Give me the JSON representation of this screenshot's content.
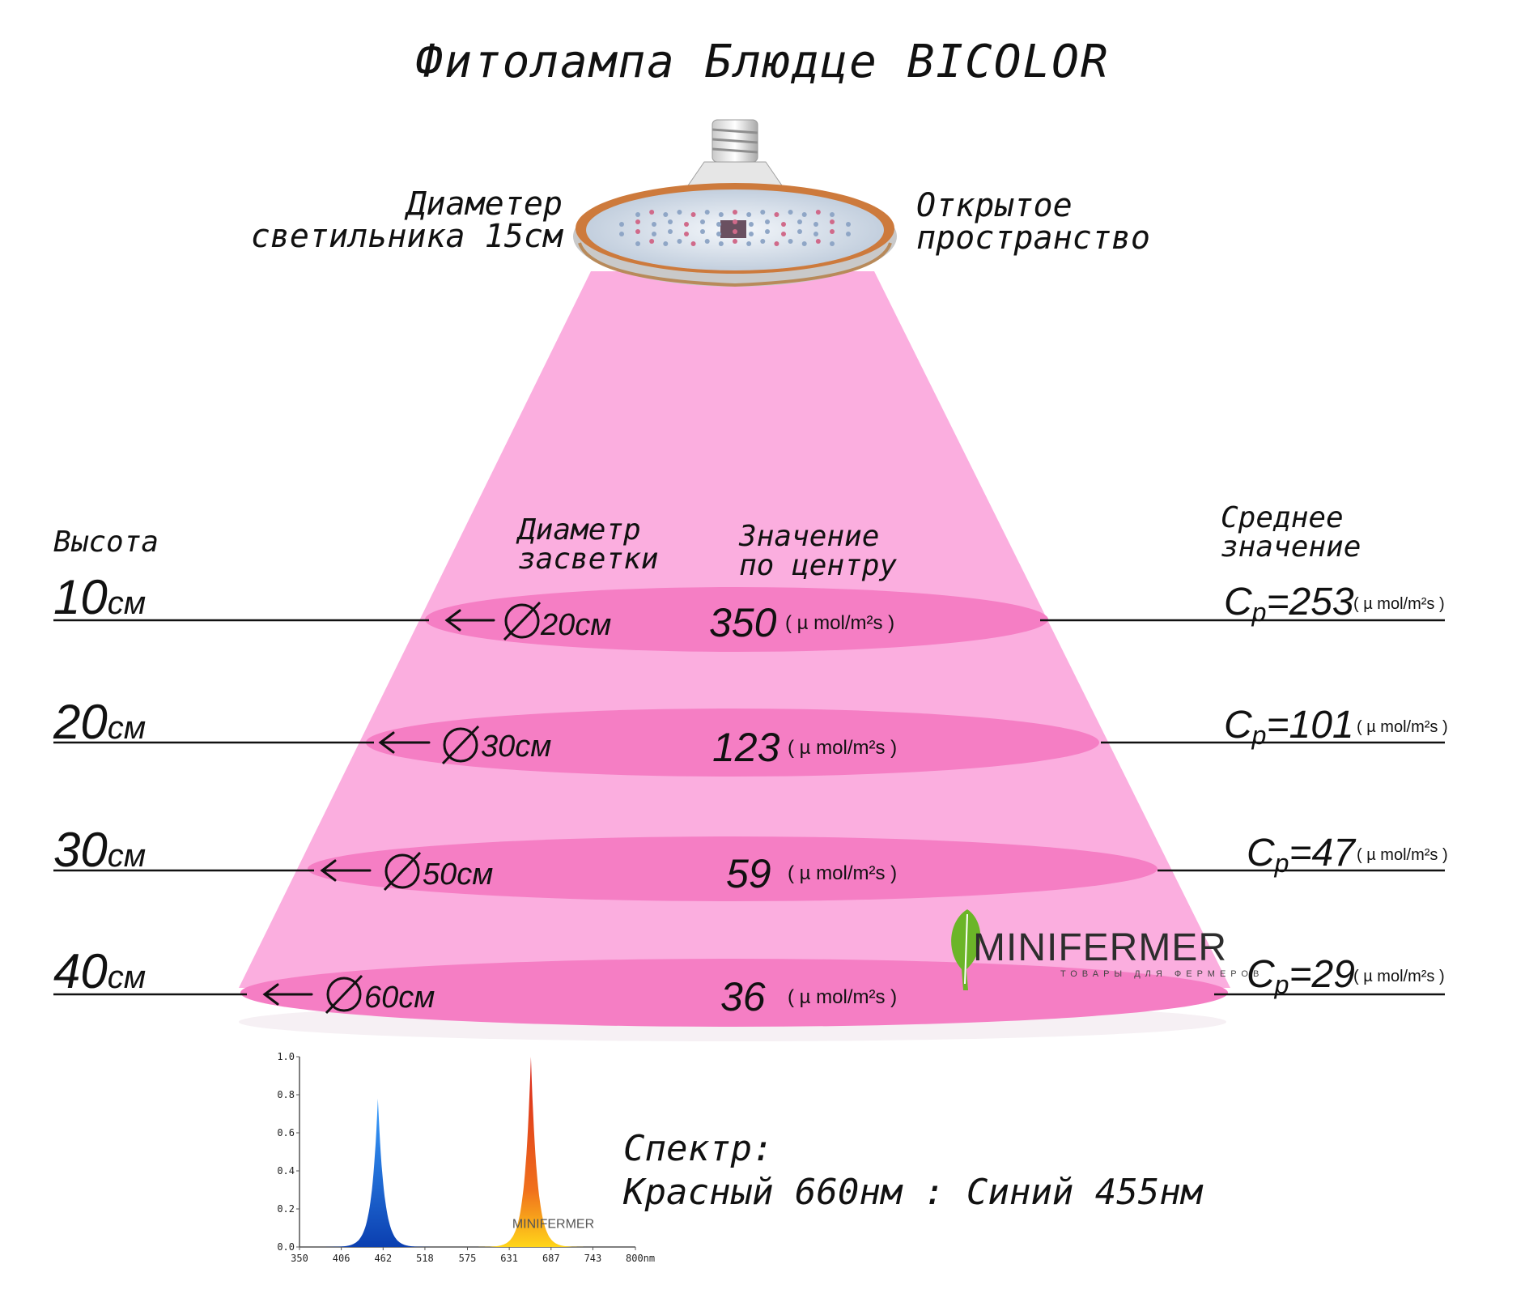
{
  "title": "Фитолампа Блюдце BICOLOR",
  "lamp": {
    "left_label": [
      "Диаметер",
      "светильника 15см"
    ],
    "right_label": [
      "Открытое",
      "пространство"
    ]
  },
  "headers": {
    "height": "Высота",
    "diameter": [
      "Диаметр",
      "засветки"
    ],
    "center": [
      "Значение",
      "по центру"
    ],
    "average": [
      "Среднее",
      "значение"
    ]
  },
  "unit": "( µ mol/m²s )",
  "rows": [
    {
      "height_num": "10",
      "height_unit": "см",
      "diameter": "20см",
      "center": "350",
      "avg_prefix": "C",
      "avg_sub": "p",
      "avg_value": "=253"
    },
    {
      "height_num": "20",
      "height_unit": "см",
      "diameter": "30см",
      "center": "123",
      "avg_prefix": "C",
      "avg_sub": "p",
      "avg_value": "=101"
    },
    {
      "height_num": "30",
      "height_unit": "см",
      "diameter": "50см",
      "center": "59",
      "avg_prefix": "C",
      "avg_sub": "p",
      "avg_value": "=47"
    },
    {
      "height_num": "40",
      "height_unit": "см",
      "diameter": "60см",
      "center": "36",
      "avg_prefix": "C",
      "avg_sub": "p",
      "avg_value": "=29"
    }
  ],
  "logo": {
    "brand": "MINIFERMER",
    "tagline": "ТОВАРЫ ДЛЯ ФЕРМЕРОВ"
  },
  "spectrum": {
    "caption": [
      "Спектр:",
      "Красный 660нм : Синий 455нм"
    ],
    "unit": "nm",
    "watermark": "MINIFERMER"
  },
  "colors": {
    "cone": "#fbaedf",
    "ellipse": "#f57ec4",
    "blue_peak": "#1f7fe0",
    "red_peak": "#e8361a",
    "logo_green": "#6bb528"
  },
  "chart_data": {
    "type": "area",
    "title": "",
    "xlabel": "nm",
    "ylabel": "",
    "xlim": [
      350,
      800
    ],
    "ylim": [
      0,
      1.0
    ],
    "x_ticks": [
      "350",
      "406",
      "462",
      "518",
      "575",
      "631",
      "687",
      "743",
      "800nm"
    ],
    "y_ticks": [
      "0.0",
      "0.2",
      "0.4",
      "0.6",
      "0.8",
      "1.0"
    ],
    "grid": false,
    "series": [
      {
        "peak_nm": 455,
        "peak_value": 0.78,
        "fwhm_nm": 22
      },
      {
        "peak_nm": 660,
        "peak_value": 1.0,
        "fwhm_nm": 22
      }
    ]
  }
}
